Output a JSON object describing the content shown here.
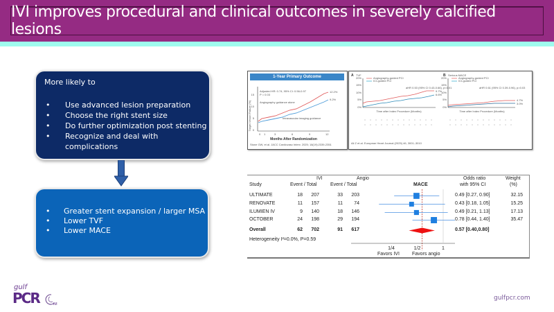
{
  "header": {
    "title": "IVI improves procedural and clinical outcomes in severely calcified lesions"
  },
  "left_panel": {
    "top_box": {
      "lead": "More likely to",
      "items": [
        "Use advanced lesion preparation",
        "Choose the right stent size",
        "Do further optimization post stenting",
        "Recognize and deal with complications"
      ]
    },
    "bottom_box": {
      "items": [
        "Greater stent expansion / larger MSA",
        "Lower TVF",
        "Lower MACE"
      ]
    },
    "bullet": "•"
  },
  "figure_1": {
    "title": "1-Year Primary Outcome",
    "ylabel": "Target Vessel Failure (%)",
    "xlabel": "Months After Randomization",
    "annotation_hr": "Adjusted HR: 0.74, 95% CI: 0.56-0.97",
    "annotation_p": "P = 0.03",
    "label_angio": "Angiography guidance alone",
    "label_ivi": "Intravascular imaging guidance",
    "end_angio": "12.2%",
    "end_ivi": "9.2%",
    "yticks": [
      "0",
      "5",
      "10",
      "15"
    ],
    "xticks": [
      "0",
      "1",
      "3",
      "6",
      "9",
      "12"
    ],
    "citation": "Stone GW, et al. JACC Cardiovasc Interv. 2025; 18(19):2339-2351",
    "series_color_angio": "#e05a5a",
    "series_color_ivi": "#4a9ad8"
  },
  "figure_2": {
    "panel_a": {
      "label": "A",
      "title": "TVF",
      "legend": [
        "Angiography-guided PCI",
        "ICI-guided PCI"
      ],
      "annotation": "aHR 0.53 (95% CI 0.43-0.66), p<0.01",
      "end_angio": "9.7%",
      "end_ivi": "6.6%",
      "ylabel": "TVF (%)",
      "xlabel": "Time after Index Procedure (Months)",
      "yticks": [
        "0%",
        "5%",
        "10%",
        "15%",
        "20%"
      ]
    },
    "panel_b": {
      "label": "B",
      "title": "Serious MACE",
      "legend": [
        "Angiography-guided PCI",
        "ICI-guided PCI"
      ],
      "annotation": "aHR 0.61 (95% CI 0.39-0.96), p=0.03",
      "end_angio": "4.7%",
      "end_ivi": "3.0%",
      "ylabel": "Serious MACE (%)",
      "xlabel": "Time after Index Procedure (Months)",
      "yticks": [
        "0%",
        "5%",
        "10%",
        "15%",
        "20%"
      ]
    },
    "citation": "Ali Z et al. European Heart Journal (2025) 46, 3001–3010"
  },
  "forest_plot": {
    "col_ivi": "IVI",
    "col_angio": "Angio",
    "col_study": "Study",
    "col_event_total": "Event / Total",
    "col_outcome": "MACE",
    "col_or": "Odds ratio",
    "col_or_sub": "with 95% CI",
    "col_weight": "Weight",
    "col_weight_sub": "(%)",
    "rows": [
      {
        "study": "ULTIMATE",
        "ivi_event": "18",
        "ivi_total": "207",
        "angio_event": "33",
        "angio_total": "203",
        "or": 0.49,
        "lo": 0.27,
        "hi": 0.9,
        "or_text": "0.49 [0.27, 0.90]",
        "weight": "32.15",
        "w": 32.15
      },
      {
        "study": "RENOVATE",
        "ivi_event": "11",
        "ivi_total": "157",
        "angio_event": "11",
        "angio_total": "74",
        "or": 0.43,
        "lo": 0.18,
        "hi": 1.05,
        "or_text": "0.43 [0.18, 1.05]",
        "weight": "15.25",
        "w": 15.25
      },
      {
        "study": "ILUMIEN IV",
        "ivi_event": "9",
        "ivi_total": "140",
        "angio_event": "18",
        "angio_total": "146",
        "or": 0.49,
        "lo": 0.21,
        "hi": 1.13,
        "or_text": "0.49 [0.21, 1.13]",
        "weight": "17.13",
        "w": 17.13
      },
      {
        "study": "OCTOBER",
        "ivi_event": "24",
        "ivi_total": "198",
        "angio_event": "29",
        "angio_total": "194",
        "or": 0.78,
        "lo": 0.44,
        "hi": 1.4,
        "or_text": "0.78 [0.44, 1.40]",
        "weight": "35.47",
        "w": 35.47
      }
    ],
    "overall": {
      "study": "Overall",
      "ivi_event": "62",
      "ivi_total": "702",
      "angio_event": "91",
      "angio_total": "617",
      "or": 0.57,
      "lo": 0.4,
      "hi": 0.8,
      "or_text": "0.57 [0.40,0.80]"
    },
    "heterogeneity": "Heterogeneity I²=0.0%, P=0.59",
    "xticks": [
      "1/4",
      "1/2",
      "1"
    ],
    "favors_left": "Favors IVI",
    "favors_right": "Favors angio",
    "square_color": "#1f7fe0",
    "diamond_color": "#ee1111",
    "ci_color": "#4a90e2",
    "ref_line_color": "#c0392b"
  },
  "chart_data": {
    "type": "scatter",
    "title": "MACE",
    "xlabel": "Odds ratio (log scale)",
    "categories": [
      "ULTIMATE",
      "RENOVATE",
      "ILUMIEN IV",
      "OCTOBER",
      "Overall"
    ],
    "series": [
      {
        "name": "Odds ratio",
        "values": [
          0.49,
          0.43,
          0.49,
          0.78,
          0.57
        ]
      },
      {
        "name": "CI lower",
        "values": [
          0.27,
          0.18,
          0.21,
          0.44,
          0.4
        ]
      },
      {
        "name": "CI upper",
        "values": [
          0.9,
          1.05,
          1.13,
          1.4,
          0.8
        ]
      },
      {
        "name": "Weight (%)",
        "values": [
          32.15,
          15.25,
          17.13,
          35.47,
          null
        ]
      }
    ],
    "xticks": [
      "1/4",
      "1/2",
      "1"
    ],
    "xlim": [
      0.15,
      1.6
    ]
  },
  "footer": {
    "logo_gulf": "gulf",
    "logo_pcr": "PCR",
    "logo_gim": "GIM",
    "website": "gulfpcr.com"
  }
}
